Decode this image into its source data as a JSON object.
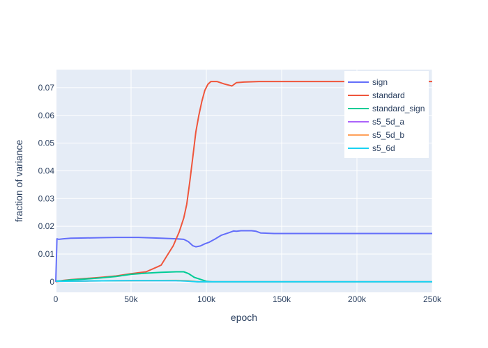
{
  "chart_data": {
    "type": "line",
    "title": "",
    "xlabel": "epoch",
    "ylabel": "fraction of variance",
    "xlim": [
      0,
      250000
    ],
    "ylim": [
      -0.0038,
      0.0765
    ],
    "x_ticks": [
      0,
      50000,
      100000,
      150000,
      200000,
      250000
    ],
    "x_tick_labels": [
      "0",
      "50k",
      "100k",
      "150k",
      "200k",
      "250k"
    ],
    "y_ticks": [
      0,
      0.01,
      0.02,
      0.03,
      0.04,
      0.05,
      0.06,
      0.07
    ],
    "y_tick_labels": [
      "0",
      "0.01",
      "0.02",
      "0.03",
      "0.04",
      "0.05",
      "0.06",
      "0.07"
    ],
    "grid": true,
    "legend_position": "top-right",
    "series": [
      {
        "name": "sign",
        "color": "#636efa",
        "points": [
          [
            0,
            0
          ],
          [
            800,
            0.0155
          ],
          [
            2000,
            0.0153
          ],
          [
            5000,
            0.0155
          ],
          [
            10000,
            0.0157
          ],
          [
            20000,
            0.0158
          ],
          [
            30000,
            0.0159
          ],
          [
            40000,
            0.016
          ],
          [
            50000,
            0.016
          ],
          [
            55000,
            0.016
          ],
          [
            60000,
            0.0159
          ],
          [
            70000,
            0.0157
          ],
          [
            80000,
            0.0155
          ],
          [
            85000,
            0.0153
          ],
          [
            88000,
            0.0145
          ],
          [
            91000,
            0.013
          ],
          [
            93000,
            0.0126
          ],
          [
            96000,
            0.0129
          ],
          [
            99000,
            0.0137
          ],
          [
            102000,
            0.0143
          ],
          [
            106000,
            0.0155
          ],
          [
            110000,
            0.0168
          ],
          [
            115000,
            0.0177
          ],
          [
            118000,
            0.0183
          ],
          [
            120000,
            0.0182
          ],
          [
            123000,
            0.0184
          ],
          [
            130000,
            0.0184
          ],
          [
            133000,
            0.0182
          ],
          [
            136000,
            0.0176
          ],
          [
            145000,
            0.0174
          ],
          [
            160000,
            0.0174
          ],
          [
            200000,
            0.0174
          ],
          [
            250000,
            0.0174
          ]
        ]
      },
      {
        "name": "standard",
        "color": "#ef553b",
        "points": [
          [
            0,
            0
          ],
          [
            5000,
            0.0005
          ],
          [
            10000,
            0.0008
          ],
          [
            20000,
            0.0012
          ],
          [
            30000,
            0.0016
          ],
          [
            40000,
            0.0021
          ],
          [
            50000,
            0.0029
          ],
          [
            60000,
            0.0036
          ],
          [
            68000,
            0.0055
          ],
          [
            70000,
            0.006
          ],
          [
            74000,
            0.0095
          ],
          [
            78000,
            0.013
          ],
          [
            82000,
            0.018
          ],
          [
            85000,
            0.023
          ],
          [
            87000,
            0.028
          ],
          [
            89000,
            0.036
          ],
          [
            91000,
            0.045
          ],
          [
            93000,
            0.054
          ],
          [
            95000,
            0.06
          ],
          [
            97000,
            0.065
          ],
          [
            99000,
            0.069
          ],
          [
            101000,
            0.0712
          ],
          [
            103000,
            0.0722
          ],
          [
            107000,
            0.0722
          ],
          [
            112000,
            0.0713
          ],
          [
            117000,
            0.0706
          ],
          [
            120000,
            0.0718
          ],
          [
            125000,
            0.072
          ],
          [
            135000,
            0.0722
          ],
          [
            150000,
            0.0722
          ],
          [
            200000,
            0.0722
          ],
          [
            250000,
            0.0722
          ]
        ]
      },
      {
        "name": "standard_sign",
        "color": "#00cc96",
        "points": [
          [
            0,
            0.0003
          ],
          [
            5000,
            0.0004
          ],
          [
            10000,
            0.0007
          ],
          [
            20000,
            0.001
          ],
          [
            30000,
            0.0014
          ],
          [
            40000,
            0.0019
          ],
          [
            50000,
            0.0027
          ],
          [
            60000,
            0.0031
          ],
          [
            70000,
            0.0034
          ],
          [
            80000,
            0.0036
          ],
          [
            85000,
            0.0036
          ],
          [
            88000,
            0.003
          ],
          [
            92000,
            0.0016
          ],
          [
            96000,
            0.0009
          ],
          [
            100000,
            0.0002
          ],
          [
            104000,
            0
          ],
          [
            110000,
            0
          ],
          [
            250000,
            0
          ]
        ]
      },
      {
        "name": "s5_5d_a",
        "color": "#ab63fa",
        "points": [
          [
            0,
            0.0002
          ],
          [
            20000,
            0.0003
          ],
          [
            50000,
            0.0004
          ],
          [
            80000,
            0.0004
          ],
          [
            88000,
            0.0003
          ],
          [
            95000,
            0
          ],
          [
            100000,
            0
          ],
          [
            250000,
            0
          ]
        ]
      },
      {
        "name": "s5_5d_b",
        "color": "#ffa15a",
        "points": [
          [
            0,
            0.0002
          ],
          [
            20000,
            0.0003
          ],
          [
            50000,
            0.0004
          ],
          [
            80000,
            0.0005
          ],
          [
            88000,
            0.0004
          ],
          [
            95000,
            0
          ],
          [
            100000,
            0
          ],
          [
            250000,
            0
          ]
        ]
      },
      {
        "name": "s5_6d",
        "color": "#19d3f3",
        "points": [
          [
            0,
            0.0002
          ],
          [
            20000,
            0.0003
          ],
          [
            50000,
            0.0004
          ],
          [
            80000,
            0.0004
          ],
          [
            86000,
            0.0003
          ],
          [
            94000,
            0
          ],
          [
            100000,
            0
          ],
          [
            250000,
            0
          ]
        ]
      }
    ]
  }
}
